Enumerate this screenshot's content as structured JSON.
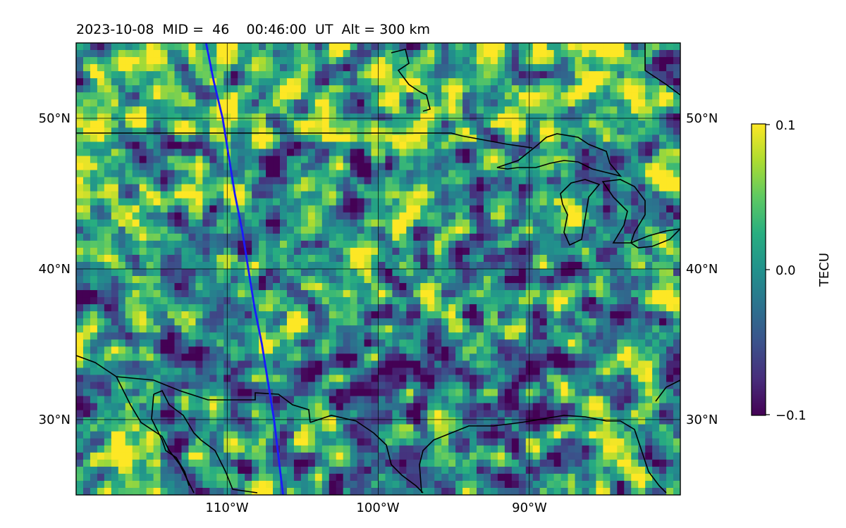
{
  "title": "2023-10-08  MID =  46    00:46:00  UT  Alt = 300 km",
  "colormap": "viridis",
  "colors": {
    "track": "#1a1aff",
    "coastline": "#000000",
    "grid": "#000000"
  },
  "chart_data": {
    "type": "heatmap",
    "projection": "plate-carree",
    "lon_range": [
      -120,
      -80
    ],
    "lat_range": [
      25,
      55
    ],
    "lat_ticks": [
      "50°N",
      "40°N",
      "30°N"
    ],
    "lon_ticks": [
      "110°W",
      "100°W",
      "90°W"
    ],
    "gridlines": true,
    "colorbar": {
      "label": "TECU",
      "ticks": [
        "0.1",
        "0.0",
        "−0.1"
      ],
      "min": -0.1,
      "max": 0.1
    },
    "track_points": [
      [
        -111.4,
        55.0
      ],
      [
        -110.9,
        52.5
      ],
      [
        -110.3,
        50.0
      ],
      [
        -109.9,
        47.5
      ],
      [
        -109.5,
        45.0
      ],
      [
        -109.0,
        42.5
      ],
      [
        -108.6,
        40.0
      ],
      [
        -108.2,
        37.5
      ],
      [
        -107.7,
        35.0
      ],
      [
        -107.3,
        32.5
      ],
      [
        -106.9,
        30.0
      ],
      [
        -106.6,
        27.5
      ],
      [
        -106.3,
        25.0
      ]
    ]
  }
}
